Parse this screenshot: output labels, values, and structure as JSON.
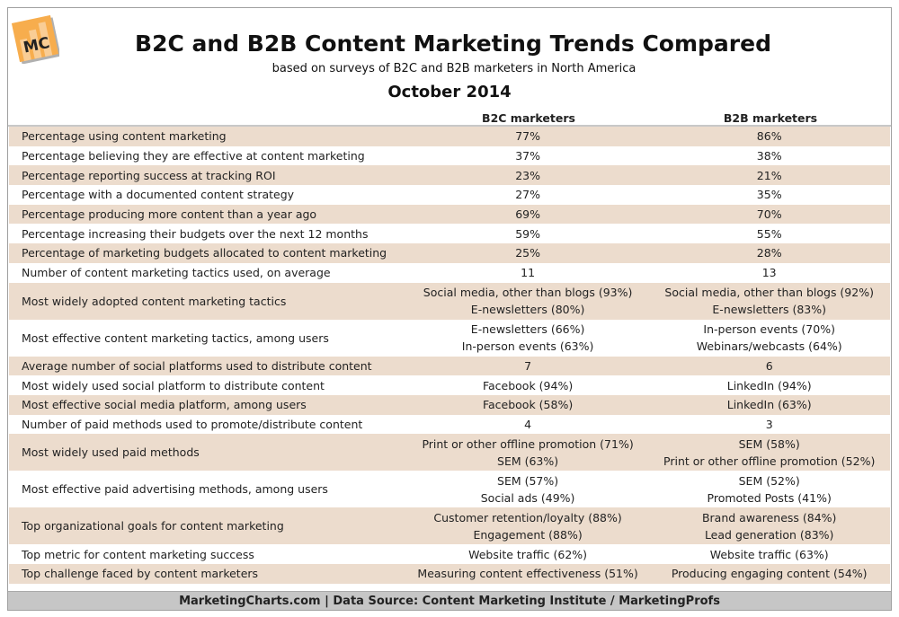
{
  "logo": "MC",
  "title": "B2C and B2B Content Marketing Trends Compared",
  "subtitle": "based on surveys of B2C and B2B marketers in North America",
  "date": "October 2014",
  "columns": [
    "B2C marketers",
    "B2B marketers"
  ],
  "rows": [
    {
      "label": "Percentage using content marketing",
      "b2c": [
        "77%"
      ],
      "b2b": [
        "86%"
      ]
    },
    {
      "label": "Percentage believing they are effective at content marketing",
      "b2c": [
        "37%"
      ],
      "b2b": [
        "38%"
      ]
    },
    {
      "label": "Percentage reporting success at tracking ROI",
      "b2c": [
        "23%"
      ],
      "b2b": [
        "21%"
      ]
    },
    {
      "label": "Percentage with a documented content strategy",
      "b2c": [
        "27%"
      ],
      "b2b": [
        "35%"
      ]
    },
    {
      "label": "Percentage producing more content than a year ago",
      "b2c": [
        "69%"
      ],
      "b2b": [
        "70%"
      ]
    },
    {
      "label": "Percentage increasing their budgets over the next 12 months",
      "b2c": [
        "59%"
      ],
      "b2b": [
        "55%"
      ]
    },
    {
      "label": "Percentage of marketing budgets allocated to content marketing",
      "b2c": [
        "25%"
      ],
      "b2b": [
        "28%"
      ]
    },
    {
      "label": "Number of content marketing tactics used, on average",
      "b2c": [
        "11"
      ],
      "b2b": [
        "13"
      ]
    },
    {
      "label": "Most widely adopted content marketing tactics",
      "b2c": [
        "Social media, other than blogs (93%)",
        "E-newsletters (80%)"
      ],
      "b2b": [
        "Social media, other than blogs (92%)",
        "E-newsletters (83%)"
      ]
    },
    {
      "label": "Most effective content marketing tactics, among users",
      "b2c": [
        "E-newsletters (66%)",
        "In-person events (63%)"
      ],
      "b2b": [
        "In-person events (70%)",
        "Webinars/webcasts (64%)"
      ]
    },
    {
      "label": "Average number of social platforms used to distribute content",
      "b2c": [
        "7"
      ],
      "b2b": [
        "6"
      ]
    },
    {
      "label": "Most widely used social platform to distribute content",
      "b2c": [
        "Facebook (94%)"
      ],
      "b2b": [
        "LinkedIn (94%)"
      ]
    },
    {
      "label": "Most effective social media platform, among users",
      "b2c": [
        "Facebook (58%)"
      ],
      "b2b": [
        "LinkedIn (63%)"
      ]
    },
    {
      "label": "Number of paid methods used to promote/distribute content",
      "b2c": [
        "4"
      ],
      "b2b": [
        "3"
      ]
    },
    {
      "label": "Most widely used paid methods",
      "b2c": [
        "Print or other offline promotion (71%)",
        "SEM (63%)"
      ],
      "b2b": [
        "SEM (58%)",
        "Print or other offline promotion (52%)"
      ]
    },
    {
      "label": "Most effective paid advertising methods, among users",
      "b2c": [
        "SEM (57%)",
        "Social ads (49%)"
      ],
      "b2b": [
        "SEM (52%)",
        "Promoted Posts (41%)"
      ]
    },
    {
      "label": "Top organizational goals for content marketing",
      "b2c": [
        "Customer retention/loyalty (88%)",
        "Engagement (88%)"
      ],
      "b2b": [
        "Brand awareness (84%)",
        "Lead generation (83%)"
      ]
    },
    {
      "label": "Top metric for content marketing success",
      "b2c": [
        "Website traffic (62%)"
      ],
      "b2b": [
        "Website traffic (63%)"
      ]
    },
    {
      "label": "Top challenge faced by content marketers",
      "b2c": [
        "Measuring content effectiveness (51%)"
      ],
      "b2b": [
        "Producing engaging content (54%)"
      ]
    }
  ],
  "footer": "MarketingCharts.com | Data Source: Content Marketing Institute / MarketingProfs",
  "colors": {
    "row_alt": "#ecdccd",
    "footer": "#c6c6c6",
    "logo": "#f5a94a"
  }
}
